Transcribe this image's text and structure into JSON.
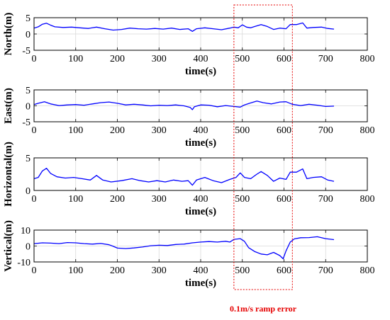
{
  "chart_data": [
    {
      "type": "line",
      "xlabel": "time(s)",
      "ylabel": "North(m)",
      "xlim": [
        0,
        800
      ],
      "ylim": [
        -5,
        5
      ],
      "xticks": [
        0,
        100,
        200,
        300,
        400,
        500,
        600,
        700,
        800
      ],
      "yticks": [
        -5,
        0,
        5
      ],
      "grid": true,
      "series": [
        {
          "color": "#0000ff",
          "points": [
            [
              0,
              1.8
            ],
            [
              10,
              2.2
            ],
            [
              20,
              3.0
            ],
            [
              30,
              3.3
            ],
            [
              40,
              2.7
            ],
            [
              50,
              2.2
            ],
            [
              70,
              2.0
            ],
            [
              90,
              2.1
            ],
            [
              110,
              1.9
            ],
            [
              130,
              1.7
            ],
            [
              150,
              2.1
            ],
            [
              170,
              1.6
            ],
            [
              190,
              1.2
            ],
            [
              210,
              1.4
            ],
            [
              230,
              1.8
            ],
            [
              250,
              1.6
            ],
            [
              270,
              1.5
            ],
            [
              290,
              1.7
            ],
            [
              310,
              1.5
            ],
            [
              330,
              1.8
            ],
            [
              350,
              1.4
            ],
            [
              370,
              1.6
            ],
            [
              380,
              0.8
            ],
            [
              390,
              1.6
            ],
            [
              410,
              1.9
            ],
            [
              430,
              1.6
            ],
            [
              450,
              1.3
            ],
            [
              470,
              1.8
            ],
            [
              480,
              2.1
            ],
            [
              490,
              1.9
            ],
            [
              500,
              2.8
            ],
            [
              510,
              2.1
            ],
            [
              520,
              1.9
            ],
            [
              530,
              2.3
            ],
            [
              545,
              2.9
            ],
            [
              560,
              2.3
            ],
            [
              575,
              1.4
            ],
            [
              590,
              1.8
            ],
            [
              605,
              1.6
            ],
            [
              615,
              2.9
            ],
            [
              630,
              2.9
            ],
            [
              645,
              3.4
            ],
            [
              655,
              1.8
            ],
            [
              670,
              2.0
            ],
            [
              690,
              2.1
            ],
            [
              705,
              1.7
            ],
            [
              720,
              1.5
            ]
          ]
        }
      ]
    },
    {
      "type": "line",
      "xlabel": "time(s)",
      "ylabel": "East(m)",
      "xlim": [
        0,
        800
      ],
      "ylim": [
        -5,
        5
      ],
      "xticks": [
        0,
        100,
        200,
        300,
        400,
        500,
        600,
        700,
        800
      ],
      "yticks": [
        -5,
        0,
        5
      ],
      "grid": true,
      "series": [
        {
          "color": "#0000ff",
          "points": [
            [
              0,
              0.4
            ],
            [
              10,
              0.8
            ],
            [
              25,
              1.3
            ],
            [
              40,
              0.6
            ],
            [
              60,
              0.1
            ],
            [
              80,
              0.3
            ],
            [
              100,
              0.4
            ],
            [
              120,
              0.2
            ],
            [
              140,
              0.6
            ],
            [
              160,
              1.0
            ],
            [
              180,
              1.2
            ],
            [
              200,
              0.8
            ],
            [
              220,
              0.3
            ],
            [
              240,
              0.5
            ],
            [
              260,
              0.3
            ],
            [
              280,
              0.0
            ],
            [
              300,
              0.2
            ],
            [
              320,
              0.1
            ],
            [
              340,
              0.3
            ],
            [
              360,
              0.0
            ],
            [
              375,
              -0.5
            ],
            [
              380,
              -1.2
            ],
            [
              385,
              -0.3
            ],
            [
              400,
              0.3
            ],
            [
              420,
              0.2
            ],
            [
              440,
              -0.3
            ],
            [
              460,
              0.1
            ],
            [
              480,
              -0.2
            ],
            [
              495,
              -0.4
            ],
            [
              505,
              0.3
            ],
            [
              520,
              0.9
            ],
            [
              535,
              1.5
            ],
            [
              550,
              1.0
            ],
            [
              570,
              0.6
            ],
            [
              590,
              1.2
            ],
            [
              605,
              1.3
            ],
            [
              620,
              0.5
            ],
            [
              640,
              0.1
            ],
            [
              660,
              0.5
            ],
            [
              680,
              0.2
            ],
            [
              700,
              -0.2
            ],
            [
              720,
              -0.1
            ]
          ]
        }
      ]
    },
    {
      "type": "line",
      "xlabel": "time(s)",
      "ylabel": "Horizontal(m)",
      "xlim": [
        0,
        800
      ],
      "ylim": [
        0,
        5
      ],
      "xticks": [
        0,
        100,
        200,
        300,
        400,
        500,
        600,
        700,
        800
      ],
      "yticks": [
        0,
        5
      ],
      "grid": true,
      "series": [
        {
          "color": "#0000ff",
          "points": [
            [
              0,
              1.8
            ],
            [
              10,
              2.0
            ],
            [
              20,
              3.0
            ],
            [
              30,
              3.4
            ],
            [
              40,
              2.6
            ],
            [
              55,
              2.1
            ],
            [
              75,
              1.9
            ],
            [
              95,
              2.0
            ],
            [
              115,
              1.8
            ],
            [
              135,
              1.6
            ],
            [
              150,
              2.3
            ],
            [
              165,
              1.6
            ],
            [
              185,
              1.3
            ],
            [
              210,
              1.5
            ],
            [
              235,
              1.8
            ],
            [
              255,
              1.5
            ],
            [
              275,
              1.3
            ],
            [
              295,
              1.5
            ],
            [
              315,
              1.3
            ],
            [
              335,
              1.6
            ],
            [
              355,
              1.4
            ],
            [
              370,
              1.5
            ],
            [
              380,
              0.8
            ],
            [
              390,
              1.6
            ],
            [
              410,
              2.0
            ],
            [
              430,
              1.5
            ],
            [
              450,
              1.2
            ],
            [
              470,
              1.7
            ],
            [
              485,
              2.0
            ],
            [
              495,
              2.7
            ],
            [
              505,
              2.0
            ],
            [
              520,
              1.8
            ],
            [
              535,
              2.5
            ],
            [
              545,
              2.9
            ],
            [
              560,
              2.3
            ],
            [
              575,
              1.4
            ],
            [
              590,
              1.9
            ],
            [
              605,
              1.7
            ],
            [
              615,
              2.8
            ],
            [
              630,
              2.8
            ],
            [
              645,
              3.3
            ],
            [
              655,
              1.8
            ],
            [
              670,
              2.0
            ],
            [
              690,
              2.1
            ],
            [
              705,
              1.6
            ],
            [
              720,
              1.4
            ]
          ]
        }
      ]
    },
    {
      "type": "line",
      "xlabel": "time(s)",
      "ylabel": "Vertical(m)",
      "xlim": [
        0,
        800
      ],
      "ylim": [
        -10,
        10
      ],
      "xticks": [
        0,
        100,
        200,
        300,
        400,
        500,
        600,
        700,
        800
      ],
      "yticks": [
        -10,
        0,
        10
      ],
      "grid": true,
      "series": [
        {
          "color": "#0000ff",
          "points": [
            [
              0,
              1.5
            ],
            [
              20,
              2.0
            ],
            [
              40,
              1.8
            ],
            [
              60,
              1.5
            ],
            [
              80,
              2.2
            ],
            [
              100,
              2.0
            ],
            [
              120,
              1.5
            ],
            [
              140,
              1.2
            ],
            [
              160,
              1.6
            ],
            [
              180,
              0.8
            ],
            [
              190,
              -0.2
            ],
            [
              200,
              -1.3
            ],
            [
              220,
              -1.6
            ],
            [
              240,
              -1.2
            ],
            [
              260,
              -0.6
            ],
            [
              280,
              0.2
            ],
            [
              300,
              0.5
            ],
            [
              320,
              0.3
            ],
            [
              340,
              1.0
            ],
            [
              360,
              1.2
            ],
            [
              380,
              2.0
            ],
            [
              400,
              2.5
            ],
            [
              420,
              2.8
            ],
            [
              440,
              2.5
            ],
            [
              460,
              3.0
            ],
            [
              470,
              2.5
            ],
            [
              480,
              4.2
            ],
            [
              495,
              4.6
            ],
            [
              505,
              3.0
            ],
            [
              515,
              -1.0
            ],
            [
              530,
              -3.5
            ],
            [
              545,
              -5.0
            ],
            [
              560,
              -5.5
            ],
            [
              575,
              -4.0
            ],
            [
              590,
              -6.0
            ],
            [
              598,
              -8.0
            ],
            [
              605,
              -3.0
            ],
            [
              615,
              2.5
            ],
            [
              625,
              4.5
            ],
            [
              640,
              5.2
            ],
            [
              660,
              5.3
            ],
            [
              680,
              5.8
            ],
            [
              700,
              4.6
            ],
            [
              720,
              4.0
            ]
          ]
        }
      ]
    }
  ],
  "annotation": {
    "text": "0.1m/s ramp error",
    "x_range": [
      490,
      615
    ]
  }
}
